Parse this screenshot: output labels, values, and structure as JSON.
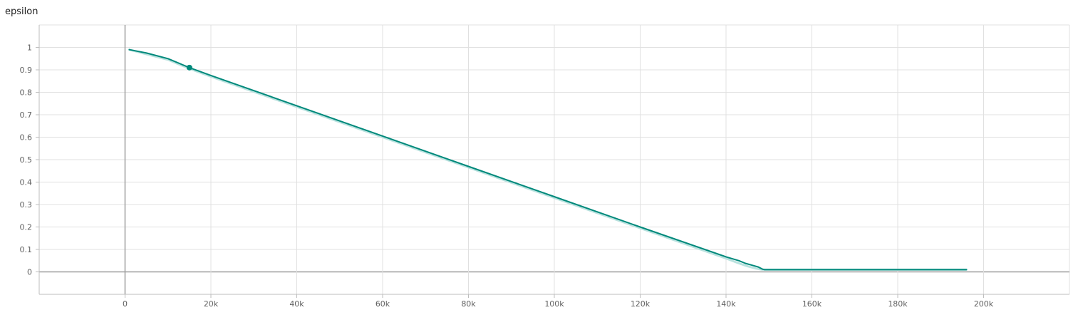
{
  "chart_data": {
    "type": "line",
    "title": "epsilon",
    "xlabel": "",
    "ylabel": "",
    "xlim": [
      -20000,
      220000
    ],
    "ylim": [
      -0.1,
      1.1
    ],
    "x_ticks": [
      {
        "value": 0,
        "label": "0"
      },
      {
        "value": 20000,
        "label": "20k"
      },
      {
        "value": 40000,
        "label": "40k"
      },
      {
        "value": 60000,
        "label": "60k"
      },
      {
        "value": 80000,
        "label": "80k"
      },
      {
        "value": 100000,
        "label": "100k"
      },
      {
        "value": 120000,
        "label": "120k"
      },
      {
        "value": 140000,
        "label": "140k"
      },
      {
        "value": 160000,
        "label": "160k"
      },
      {
        "value": 180000,
        "label": "180k"
      },
      {
        "value": 200000,
        "label": "200k"
      }
    ],
    "y_ticks": [
      {
        "value": 0,
        "label": "0"
      },
      {
        "value": 0.1,
        "label": "0.1"
      },
      {
        "value": 0.2,
        "label": "0.2"
      },
      {
        "value": 0.3,
        "label": "0.3"
      },
      {
        "value": 0.4,
        "label": "0.4"
      },
      {
        "value": 0.5,
        "label": "0.5"
      },
      {
        "value": 0.6,
        "label": "0.6"
      },
      {
        "value": 0.7,
        "label": "0.7"
      },
      {
        "value": 0.8,
        "label": "0.8"
      },
      {
        "value": 0.9,
        "label": "0.9"
      },
      {
        "value": 1,
        "label": "1"
      }
    ],
    "grid": true,
    "series": [
      {
        "role": "raw",
        "color": "#b2dfdb",
        "x": [
          1000,
          5000,
          10000,
          15000,
          20000,
          40000,
          60000,
          80000,
          100000,
          120000,
          140000,
          143000,
          145000,
          147000,
          148500,
          149000,
          150000,
          160000,
          180000,
          196000
        ],
        "y": [
          0.99,
          0.97,
          0.945,
          0.905,
          0.87,
          0.735,
          0.6,
          0.465,
          0.33,
          0.195,
          0.06,
          0.038,
          0.025,
          0.015,
          0.01,
          0.01,
          0.01,
          0.01,
          0.01,
          0.01
        ]
      },
      {
        "role": "smoothed",
        "color": "#00897b",
        "x": [
          1000,
          5000,
          10000,
          15000,
          20000,
          40000,
          60000,
          80000,
          100000,
          120000,
          140000,
          143000,
          144500,
          146000,
          147500,
          148500,
          149000,
          150000,
          160000,
          180000,
          196000
        ],
        "y": [
          0.99,
          0.975,
          0.95,
          0.91,
          0.875,
          0.74,
          0.605,
          0.47,
          0.335,
          0.2,
          0.067,
          0.05,
          0.038,
          0.03,
          0.022,
          0.012,
          0.01,
          0.01,
          0.01,
          0.01,
          0.01
        ]
      }
    ],
    "highlight_point": {
      "x": 15000,
      "y": 0.91,
      "color": "#00897b"
    }
  }
}
